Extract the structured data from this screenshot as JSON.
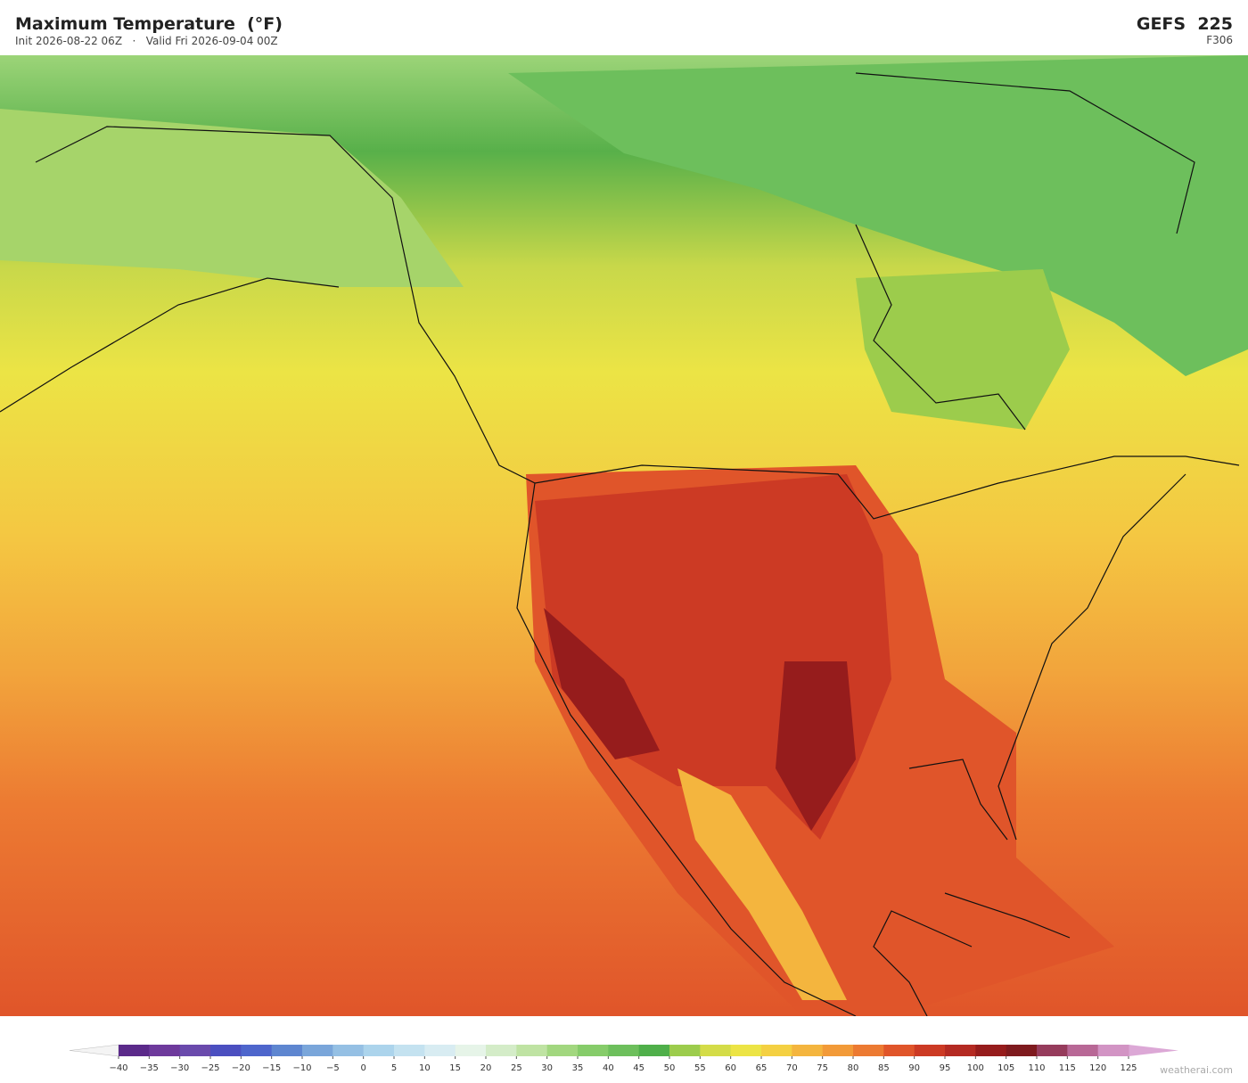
{
  "header": {
    "title": "Maximum Temperature  (°F)",
    "subtitle": "Init 2026-08-22 06Z   ·   Valid Fri 2026-09-04 00Z",
    "model": "GEFS  225",
    "forecast_hour": "F306"
  },
  "colorbar": {
    "ticks": [
      {
        "value": -40,
        "label": "−40"
      },
      {
        "value": -35,
        "label": "−35"
      },
      {
        "value": -30,
        "label": "−30"
      },
      {
        "value": -25,
        "label": "−25"
      },
      {
        "value": -20,
        "label": "−20"
      },
      {
        "value": -15,
        "label": "−15"
      },
      {
        "value": -10,
        "label": "−10"
      },
      {
        "value": -5,
        "label": "−5"
      },
      0,
      5,
      10,
      15,
      20,
      25,
      30,
      35,
      40,
      45,
      50,
      55,
      60,
      65,
      70,
      75,
      80,
      85,
      90,
      95,
      100,
      105,
      110,
      115,
      120,
      125
    ],
    "colors": [
      "#5b2a8a",
      "#6e3a9c",
      "#6a4aac",
      "#4b4fc0",
      "#4e66cc",
      "#5e86d0",
      "#7aa6da",
      "#95c0e4",
      "#acd4ec",
      "#c4e2f0",
      "#d8ecf2",
      "#e6f4e8",
      "#d4ecc8",
      "#bfe3a3",
      "#a2d77f",
      "#86cc6a",
      "#6dbf5c",
      "#4faf4a",
      "#9ccc4c",
      "#d4dc48",
      "#ece445",
      "#f4d042",
      "#f4b53e",
      "#f29a38",
      "#ec7a32",
      "#e0552a",
      "#cc3a24",
      "#b42a22",
      "#961c1c",
      "#7e1a1e",
      "#963c5c",
      "#b86896",
      "#d294c4"
    ],
    "under_color": "#f4f4f4",
    "over_color": "#dca8d6"
  },
  "watermark": "weatherai.com"
}
